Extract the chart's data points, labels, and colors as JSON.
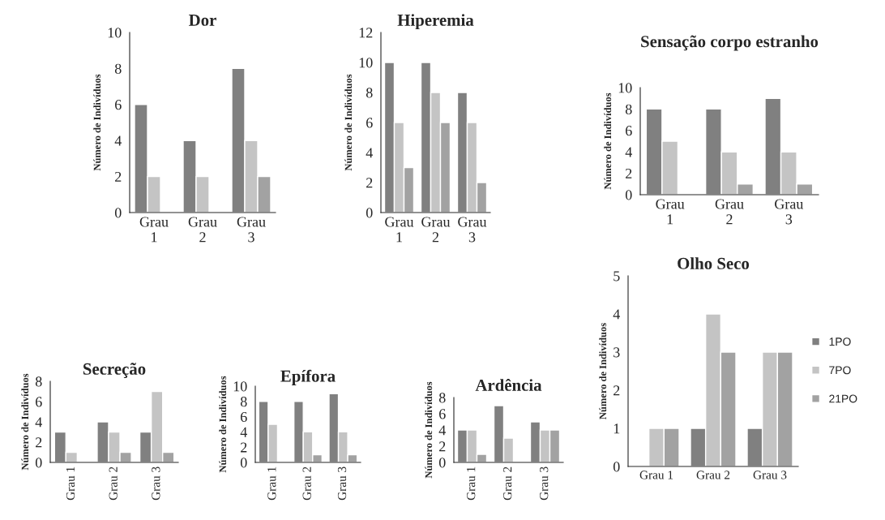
{
  "chart_data": [
    {
      "type": "bar",
      "title": "Dor",
      "ylabel": "Número de Indivíduos",
      "categories": [
        "Grau 1",
        "Grau 2",
        "Grau 3"
      ],
      "ylim": [
        0,
        10
      ],
      "yticks": [
        0,
        2,
        4,
        6,
        8,
        10
      ],
      "grid": false,
      "series": [
        {
          "color": "#808080",
          "values": [
            6,
            4,
            8
          ]
        },
        {
          "color": "#c4c4c4",
          "values": [
            2,
            2,
            4
          ]
        },
        {
          "color": "#a2a2a2",
          "values": [
            null,
            null,
            2
          ]
        }
      ]
    },
    {
      "type": "bar",
      "title": "Hiperemia",
      "ylabel": "Número de Indivíduos",
      "categories": [
        "Grau 1",
        "Grau 2",
        "Grau 3"
      ],
      "ylim": [
        0,
        12
      ],
      "yticks": [
        0,
        2,
        4,
        6,
        8,
        10,
        12
      ],
      "grid": false,
      "series": [
        {
          "color": "#808080",
          "values": [
            10,
            10,
            8
          ]
        },
        {
          "color": "#c4c4c4",
          "values": [
            6,
            8,
            6
          ]
        },
        {
          "color": "#a2a2a2",
          "values": [
            3,
            6,
            2
          ]
        }
      ]
    },
    {
      "type": "bar",
      "title": "Sensação corpo estranho",
      "ylabel": "Número de Indivíduos",
      "categories": [
        "Grau 1",
        "Grau 2",
        "Grau 3"
      ],
      "ylim": [
        0,
        10
      ],
      "yticks": [
        0,
        2,
        4,
        6,
        8,
        10
      ],
      "grid": false,
      "series": [
        {
          "color": "#808080",
          "values": [
            8,
            8,
            9
          ]
        },
        {
          "color": "#c4c4c4",
          "values": [
            5,
            4,
            4
          ]
        },
        {
          "color": "#a2a2a2",
          "values": [
            null,
            1,
            1
          ]
        }
      ]
    },
    {
      "type": "bar",
      "title": "Secreção",
      "ylabel": "Número de Indivíduos",
      "categories": [
        "Grau 1",
        "Grau 2",
        "Grau 3"
      ],
      "ylim": [
        0,
        8
      ],
      "yticks": [
        0,
        2,
        4,
        6,
        8
      ],
      "grid": false,
      "series": [
        {
          "color": "#808080",
          "values": [
            3,
            4,
            3
          ]
        },
        {
          "color": "#c4c4c4",
          "values": [
            1,
            3,
            7
          ]
        },
        {
          "color": "#a2a2a2",
          "values": [
            null,
            1,
            1
          ]
        }
      ]
    },
    {
      "type": "bar",
      "title": "Epífora",
      "ylabel": "Número de Indivíduos",
      "categories": [
        "Grau 1",
        "Grau 2",
        "Grau 3"
      ],
      "ylim": [
        0,
        10
      ],
      "yticks": [
        0,
        2,
        4,
        6,
        8,
        10
      ],
      "grid": false,
      "series": [
        {
          "color": "#808080",
          "values": [
            8,
            8,
            9
          ]
        },
        {
          "color": "#c4c4c4",
          "values": [
            5,
            4,
            4
          ]
        },
        {
          "color": "#a2a2a2",
          "values": [
            null,
            1,
            1
          ]
        }
      ]
    },
    {
      "type": "bar",
      "title": "Ardência",
      "ylabel": "Número de Indivíduos",
      "categories": [
        "Grau 1",
        "Grau 2",
        "Grau 3"
      ],
      "ylim": [
        0,
        8
      ],
      "yticks": [
        0,
        2,
        4,
        6,
        8
      ],
      "grid": false,
      "series": [
        {
          "color": "#808080",
          "values": [
            4,
            7,
            5
          ]
        },
        {
          "color": "#c4c4c4",
          "values": [
            4,
            3,
            4
          ]
        },
        {
          "color": "#a2a2a2",
          "values": [
            1,
            null,
            4
          ]
        }
      ]
    },
    {
      "type": "bar",
      "title": "Olho Seco",
      "ylabel": "Número de Indivíduos",
      "categories": [
        "Grau 1",
        "Grau 2",
        "Grau 3"
      ],
      "ylim": [
        0,
        5
      ],
      "yticks": [
        0,
        1,
        2,
        3,
        4,
        5
      ],
      "grid": false,
      "legend": "right",
      "series": [
        {
          "name": "1PO",
          "color": "#808080",
          "values": [
            null,
            1,
            1
          ]
        },
        {
          "name": "7PO",
          "color": "#c4c4c4",
          "values": [
            1,
            4,
            3
          ]
        },
        {
          "name": "21PO",
          "color": "#a2a2a2",
          "values": [
            1,
            3,
            3
          ]
        }
      ]
    }
  ]
}
